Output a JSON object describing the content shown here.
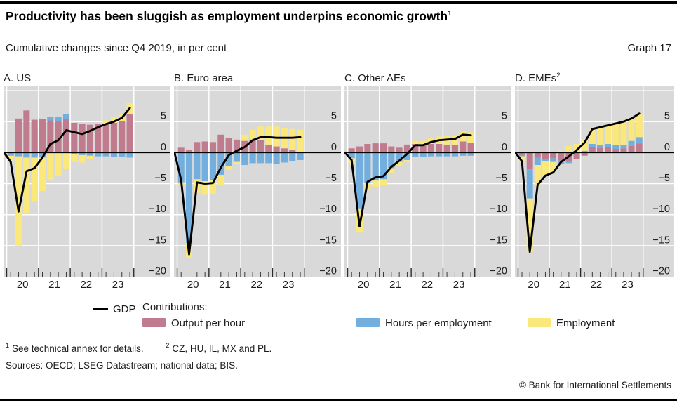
{
  "page": {
    "title": "Productivity has been sluggish as employment underpins economic growth",
    "title_footnote_marker": "1",
    "subtitle": "Cumulative changes since Q4 2019, in per cent",
    "graph_label": "Graph 17"
  },
  "colors": {
    "output_per_hour": "#c17b8e",
    "hours_per_employment": "#72aede",
    "employment": "#fbe87a",
    "gdp_line": "#000000",
    "panel_background": "#d9d9d9",
    "gridline": "#ffffff"
  },
  "axis": {
    "y_ticks": [
      5,
      0,
      -5,
      -10,
      -15,
      -20
    ],
    "y_range": [
      -20,
      10.8
    ],
    "x_year_labels": [
      "20",
      "21",
      "22",
      "23"
    ],
    "grid": true,
    "legend_position": "bottom"
  },
  "legend": {
    "gdp_label": "GDP",
    "contributions_label": "Contributions:",
    "items": [
      {
        "label": "Output per hour",
        "color": "#c17b8e"
      },
      {
        "label": "Hours per employment",
        "color": "#72aede"
      },
      {
        "label": "Employment",
        "color": "#fbe87a"
      }
    ]
  },
  "footnotes": [
    {
      "marker": "1",
      "text": "See technical annex for details."
    },
    {
      "marker": "2",
      "text": "CZ, HU, IL, MX and PL."
    }
  ],
  "sources": "Sources: OECD; LSEG Datastream; national data; BIS.",
  "copyright": "© Bank for International Settlements",
  "chart_data": [
    {
      "panel": "A",
      "title": "A. US",
      "title_sup": "",
      "type": "bar",
      "quarters": [
        "2020Q1",
        "2020Q2",
        "2020Q3",
        "2020Q4",
        "2021Q1",
        "2021Q2",
        "2021Q3",
        "2021Q4",
        "2022Q1",
        "2022Q2",
        "2022Q3",
        "2022Q4",
        "2023Q1",
        "2023Q2",
        "2023Q3",
        "2023Q4"
      ],
      "baseline": {
        "label": "Q4 2019",
        "value": 0
      },
      "series": [
        {
          "name": "Output per hour",
          "values": [
            0.0,
            5.5,
            6.8,
            5.3,
            5.4,
            5.2,
            5.1,
            5.4,
            4.8,
            4.6,
            4.5,
            4.6,
            4.7,
            4.8,
            5.1,
            6.2
          ]
        },
        {
          "name": "Hours per employment",
          "values": [
            -0.5,
            -0.6,
            -0.8,
            -0.8,
            -0.8,
            0.6,
            0.7,
            0.8,
            -0.2,
            -0.4,
            -0.5,
            -0.6,
            -0.6,
            -0.7,
            -0.7,
            -0.8
          ]
        },
        {
          "name": "Employment",
          "values": [
            -1.0,
            -14.4,
            -9.0,
            -7.0,
            -5.4,
            -4.4,
            -3.8,
            -2.6,
            -1.3,
            -1.2,
            -0.5,
            0.1,
            0.5,
            0.9,
            1.2,
            1.8
          ]
        }
      ],
      "line": {
        "name": "GDP",
        "values": [
          -1.5,
          -9.5,
          -3.0,
          -2.5,
          -0.8,
          1.4,
          2.0,
          3.6,
          3.3,
          3.0,
          3.5,
          4.1,
          4.6,
          5.0,
          5.6,
          7.2
        ]
      }
    },
    {
      "panel": "B",
      "title": "B. Euro area",
      "title_sup": "",
      "type": "bar",
      "quarters": [
        "2020Q1",
        "2020Q2",
        "2020Q3",
        "2020Q4",
        "2021Q1",
        "2021Q2",
        "2021Q3",
        "2021Q4",
        "2022Q1",
        "2022Q2",
        "2022Q3",
        "2022Q4",
        "2023Q1",
        "2023Q2",
        "2023Q3",
        "2023Q4"
      ],
      "baseline": {
        "label": "Q4 2019",
        "value": 0
      },
      "series": [
        {
          "name": "Output per hour",
          "values": [
            0.8,
            0.5,
            1.7,
            1.8,
            1.7,
            2.9,
            2.4,
            2.1,
            1.9,
            2.1,
            2.0,
            1.3,
            1.0,
            0.7,
            0.4,
            0.0
          ]
        },
        {
          "name": "Hours per employment",
          "values": [
            -4.8,
            -14.6,
            -4.3,
            -4.6,
            -4.5,
            -3.6,
            -2.2,
            -1.5,
            -2.0,
            -1.7,
            -1.7,
            -1.7,
            -1.8,
            -1.6,
            -1.4,
            -1.2
          ]
        },
        {
          "name": "Employment",
          "values": [
            -0.4,
            -2.3,
            -2.2,
            -2.2,
            -2.1,
            -1.7,
            -0.6,
            -0.3,
            1.0,
            1.6,
            2.2,
            2.9,
            3.2,
            3.3,
            3.4,
            3.7
          ]
        }
      ],
      "line": {
        "name": "GDP",
        "values": [
          -4.4,
          -16.4,
          -4.8,
          -5.0,
          -4.9,
          -2.4,
          -0.4,
          0.3,
          0.9,
          2.0,
          2.5,
          2.5,
          2.4,
          2.4,
          2.4,
          2.5
        ]
      }
    },
    {
      "panel": "C",
      "title": "C. Other AEs",
      "title_sup": "",
      "type": "bar",
      "quarters": [
        "2020Q1",
        "2020Q2",
        "2020Q3",
        "2020Q4",
        "2021Q1",
        "2021Q2",
        "2021Q3",
        "2021Q4",
        "2022Q1",
        "2022Q2",
        "2022Q3",
        "2022Q4",
        "2023Q1",
        "2023Q2",
        "2023Q3",
        "2023Q4"
      ],
      "baseline": {
        "label": "Q4 2019",
        "value": 0
      },
      "series": [
        {
          "name": "Output per hour",
          "values": [
            0.7,
            1.0,
            1.4,
            1.5,
            1.5,
            1.0,
            0.8,
            1.3,
            1.4,
            1.3,
            1.4,
            1.4,
            1.3,
            1.3,
            1.8,
            1.6
          ]
        },
        {
          "name": "Hours per employment",
          "values": [
            -0.9,
            -9.0,
            -4.9,
            -4.5,
            -4.3,
            -2.5,
            -1.5,
            -1.2,
            -0.7,
            -0.7,
            -0.6,
            -0.6,
            -0.6,
            -0.6,
            -0.5,
            -0.5
          ]
        },
        {
          "name": "Employment",
          "values": [
            -1.0,
            -3.9,
            -1.2,
            -1.0,
            -1.0,
            -0.8,
            -0.6,
            -0.3,
            0.5,
            0.6,
            0.9,
            1.2,
            1.4,
            1.5,
            1.6,
            1.7
          ]
        }
      ],
      "line": {
        "name": "GDP",
        "values": [
          -1.2,
          -11.9,
          -4.7,
          -4.0,
          -3.8,
          -2.3,
          -1.3,
          -0.2,
          1.2,
          1.2,
          1.7,
          2.0,
          2.1,
          2.2,
          2.9,
          2.8
        ]
      }
    },
    {
      "panel": "D",
      "title": "D. EMEs",
      "title_sup": "2",
      "type": "bar",
      "quarters": [
        "2020Q1",
        "2020Q2",
        "2020Q3",
        "2020Q4",
        "2021Q1",
        "2021Q2",
        "2021Q3",
        "2021Q4",
        "2022Q1",
        "2022Q2",
        "2022Q3",
        "2022Q4",
        "2023Q1",
        "2023Q2",
        "2023Q3",
        "2023Q4"
      ],
      "baseline": {
        "label": "Q4 2019",
        "value": 0
      },
      "series": [
        {
          "name": "Output per hour",
          "values": [
            -0.4,
            -2.7,
            -0.8,
            -1.0,
            -0.9,
            -1.3,
            -1.4,
            -1.0,
            -0.5,
            0.9,
            0.8,
            0.9,
            0.6,
            0.7,
            1.1,
            1.5
          ]
        },
        {
          "name": "Hours per employment",
          "values": [
            -0.2,
            -4.7,
            -1.2,
            -0.4,
            -0.6,
            -0.5,
            -0.3,
            0.1,
            0.3,
            0.5,
            0.5,
            0.5,
            0.6,
            0.6,
            0.8,
            1.0
          ]
        },
        {
          "name": "Employment",
          "values": [
            -0.8,
            -8.6,
            -3.2,
            -2.3,
            -1.7,
            0.3,
            1.1,
            1.3,
            1.8,
            2.4,
            2.8,
            3.0,
            3.5,
            3.7,
            3.6,
            3.8
          ]
        }
      ],
      "line": {
        "name": "GDP",
        "values": [
          -1.4,
          -16.0,
          -5.2,
          -3.7,
          -3.2,
          -1.5,
          -0.6,
          0.4,
          1.6,
          3.8,
          4.1,
          4.4,
          4.7,
          5.0,
          5.5,
          6.3
        ]
      }
    }
  ]
}
